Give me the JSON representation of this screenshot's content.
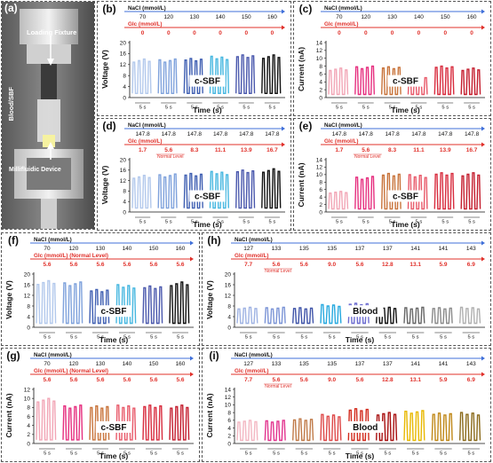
{
  "photo": {
    "label": "(a)",
    "loading_fixture": "Loading Fixture",
    "blood_sbf": "Blood/SBF",
    "millifluidic": "Millifluidic Device"
  },
  "colors": {
    "blue_arrow": "#3f6fd9",
    "red_arrow": "#e0302a",
    "blues": [
      "#b3c9ec",
      "#7fa2dc",
      "#3f5fb2",
      "#46b7e0",
      "#4a58ad",
      "#111111"
    ],
    "reds_b": [
      "#f2a6b6",
      "#e62f7f",
      "#c8733a",
      "#e85a6a",
      "#d82c3e",
      "#c41e2e"
    ],
    "blood_v": [
      "#9fb3e3",
      "#7b94d6",
      "#3e53a8",
      "#27a9df",
      "#6b6bd0",
      "#111111",
      "#666666",
      "#8a8a8a",
      "#b0b0b0"
    ],
    "blood_c": [
      "#f3b7c2",
      "#e2338e",
      "#c07a48",
      "#de4848",
      "#d22a1c",
      "#a81010",
      "#e8b800",
      "#c08818",
      "#8a6a1a"
    ]
  },
  "chart_data": [
    {
      "id": "b",
      "label": "(b)",
      "type": "line",
      "mode": "voltage",
      "nacl_title": "NaCl (mmol/L)",
      "nacl": [
        "70",
        "120",
        "130",
        "140",
        "150",
        "160"
      ],
      "glc_title": "Glc (mmol/L)",
      "glc": [
        "0",
        "0",
        "0",
        "0",
        "0",
        "0"
      ],
      "normal_level": "",
      "ylabel": "Voltage (V)",
      "xlabel": "Time (s)",
      "ylim": [
        0,
        20
      ],
      "yticks": [
        0,
        4,
        8,
        12,
        16,
        20
      ],
      "tag": "c-SBF",
      "seg_label": "5 s",
      "amplitudes": [
        14,
        14,
        14.5,
        15,
        15.5,
        15.5
      ]
    },
    {
      "id": "c",
      "label": "(c)",
      "type": "line",
      "mode": "current",
      "nacl_title": "NaCl (mmol/L)",
      "nacl": [
        "70",
        "120",
        "130",
        "140",
        "150",
        "160"
      ],
      "glc_title": "Glc (mmol/L)",
      "glc": [
        "0",
        "0",
        "0",
        "0",
        "0",
        "0"
      ],
      "normal_level": "",
      "ylabel": "Current (nA)",
      "xlabel": "Time (s)",
      "ylim": [
        0,
        14
      ],
      "yticks": [
        0,
        2,
        4,
        6,
        8,
        10,
        12,
        14
      ],
      "tag": "c-SBF",
      "seg_label": "5 s",
      "amplitudes": [
        7.5,
        8,
        8,
        5.5,
        8,
        7.5
      ]
    },
    {
      "id": "d",
      "label": "(d)",
      "type": "line",
      "mode": "voltage",
      "nacl_title": "NaCl (mmol/L)",
      "nacl": [
        "147.8",
        "147.8",
        "147.8",
        "147.8",
        "147.8",
        "147.8"
      ],
      "glc_title": "Glc (mmol/L)",
      "glc": [
        "1.7",
        "5.6",
        "8.3",
        "11.1",
        "13.9",
        "16.7"
      ],
      "normal_level": "Normal Level",
      "ylabel": "Voltage (V)",
      "xlabel": "Time (s)",
      "ylim": [
        0,
        20
      ],
      "yticks": [
        0,
        4,
        8,
        12,
        16,
        20
      ],
      "tag": "c-SBF",
      "seg_label": "5 s",
      "amplitudes": [
        14,
        14.5,
        15,
        15.5,
        16,
        16.5
      ]
    },
    {
      "id": "e",
      "label": "(e)",
      "type": "line",
      "mode": "current",
      "nacl_title": "NaCl (mmol/L)",
      "nacl": [
        "147.8",
        "147.8",
        "147.8",
        "147.8",
        "147.8",
        "147.8"
      ],
      "glc_title": "Glc (mmol/L)",
      "glc": [
        "1.7",
        "5.6",
        "8.3",
        "11.1",
        "13.9",
        "16.7"
      ],
      "normal_level": "Normal Level",
      "ylabel": "Current (nA)",
      "xlabel": "Time (s)",
      "ylim": [
        0,
        14
      ],
      "yticks": [
        0,
        2,
        4,
        6,
        8,
        10,
        12,
        14
      ],
      "tag": "c-SBF",
      "seg_label": "5 s",
      "amplitudes": [
        5.5,
        9.5,
        10.5,
        10,
        10.5,
        10.5
      ]
    },
    {
      "id": "f",
      "label": "(f)",
      "type": "line",
      "mode": "voltage",
      "nacl_title": "NaCl (mmol/L)",
      "nacl": [
        "70",
        "120",
        "130",
        "140",
        "150",
        "160"
      ],
      "glc_title": "Glc (mmol/L) (Normal Level)",
      "glc": [
        "5.6",
        "5.6",
        "5.6",
        "5.6",
        "5.6",
        "5.6"
      ],
      "normal_level": "",
      "ylabel": "Voltage (V)",
      "xlabel": "Time (s)",
      "ylim": [
        0,
        20
      ],
      "yticks": [
        0,
        4,
        8,
        12,
        16,
        20
      ],
      "tag": "c-SBF",
      "seg_label": "5 s",
      "amplitudes": [
        17.5,
        17,
        14.5,
        16,
        15.5,
        17
      ]
    },
    {
      "id": "g",
      "label": "(g)",
      "type": "line",
      "mode": "current",
      "nacl_title": "NaCl (mmol/L)",
      "nacl": [
        "70",
        "120",
        "130",
        "140",
        "150",
        "160"
      ],
      "glc_title": "Glc (mmol/L) (Normal Level)",
      "glc": [
        "5.6",
        "5.6",
        "5.6",
        "5.6",
        "5.6",
        "5.6"
      ],
      "normal_level": "",
      "ylabel": "Current (nA)",
      "xlabel": "Time (s)",
      "ylim": [
        0,
        12
      ],
      "yticks": [
        0,
        2,
        4,
        6,
        8,
        10,
        12
      ],
      "tag": "c-SBF",
      "seg_label": "5 s",
      "amplitudes": [
        10,
        8.5,
        8.5,
        8.5,
        8.5,
        8.5
      ]
    },
    {
      "id": "h",
      "label": "(h)",
      "type": "line",
      "mode": "voltage",
      "nacl_title": "NaCl (mmol/L)",
      "nacl": [
        "127",
        "133",
        "135",
        "135",
        "137",
        "137",
        "141",
        "141",
        "143"
      ],
      "glc_title": "Glc (mmol/L)",
      "glc": [
        "7.7",
        "5.6",
        "5.6",
        "9.0",
        "5.6",
        "12.8",
        "13.1",
        "5.9",
        "6.9"
      ],
      "normal_level": "Normal Level",
      "ylabel": "Voltage (V)",
      "xlabel": "Time (s)",
      "ylim": [
        0,
        20
      ],
      "yticks": [
        0,
        4,
        8,
        12,
        16,
        20
      ],
      "tag": "Blood",
      "seg_label": "5 s",
      "amplitudes": [
        7.5,
        7.5,
        7.5,
        8.5,
        9,
        7.5,
        7.5,
        7.5,
        7.5
      ]
    },
    {
      "id": "i",
      "label": "(i)",
      "type": "line",
      "mode": "current",
      "nacl_title": "NaCl (mmol/L)",
      "nacl": [
        "127",
        "133",
        "135",
        "135",
        "137",
        "137",
        "141",
        "141",
        "143"
      ],
      "glc_title": "Glc (mmol/L)",
      "glc": [
        "7.7",
        "5.6",
        "5.6",
        "9.0",
        "5.6",
        "12.8",
        "13.1",
        "5.9",
        "6.9"
      ],
      "normal_level": "Normal Level",
      "ylabel": "Current (nA)",
      "xlabel": "Time (s)",
      "ylim": [
        0,
        14
      ],
      "yticks": [
        0,
        2,
        4,
        6,
        8,
        10,
        12,
        14
      ],
      "tag": "Blood",
      "seg_label": "5 s",
      "amplitudes": [
        6,
        6,
        6.5,
        7.5,
        9,
        8,
        8.5,
        8,
        8
      ]
    }
  ]
}
